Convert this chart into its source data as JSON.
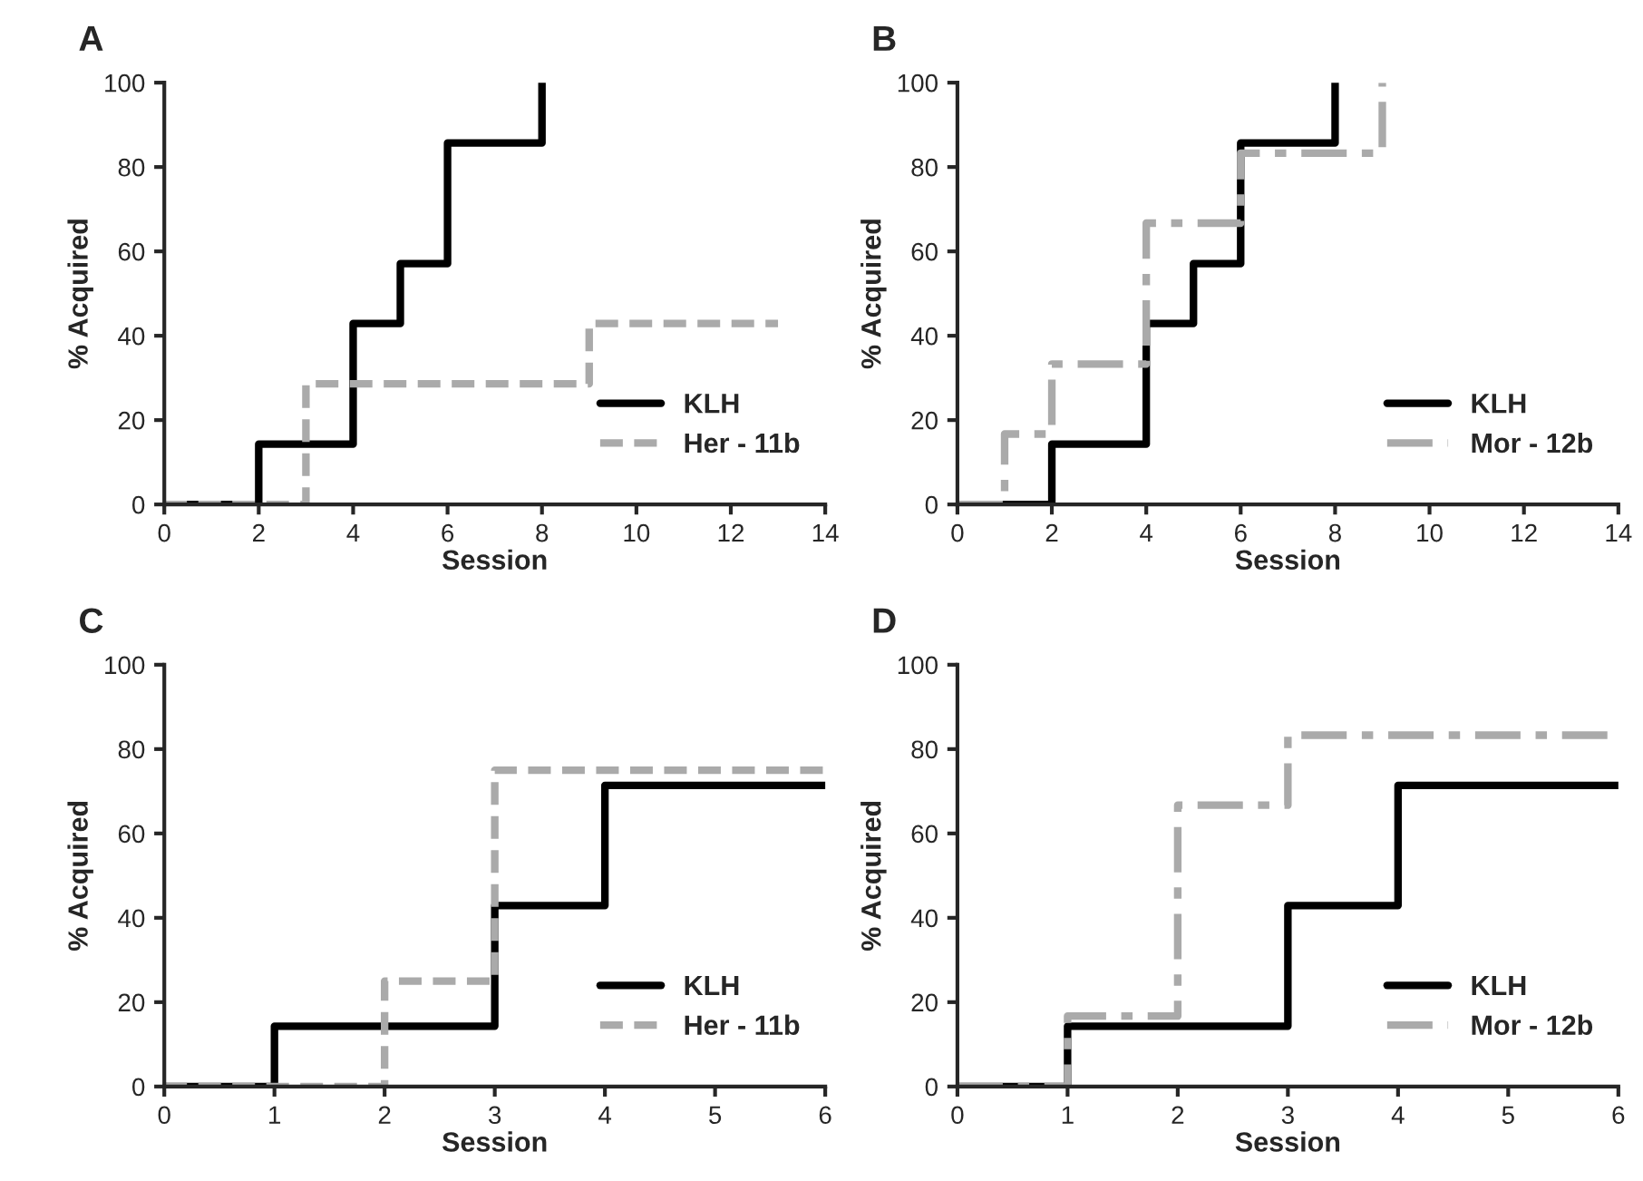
{
  "chart_data": [
    {
      "type": "step",
      "title": "A",
      "xlabel": "Session",
      "ylabel": "% Acquired",
      "xlim": [
        0,
        14
      ],
      "xticks": [
        0,
        2,
        4,
        6,
        8,
        10,
        12,
        14
      ],
      "ylim": [
        0,
        100
      ],
      "yticks": [
        0,
        20,
        40,
        60,
        80,
        100
      ],
      "grid": false,
      "legend": "bottom right",
      "series": [
        {
          "name": "KLH",
          "color": "#000000",
          "line_style": "solid",
          "x": [
            0,
            2,
            4,
            5,
            6,
            8
          ],
          "values": [
            0,
            14.3,
            42.9,
            57.1,
            85.7,
            100
          ]
        },
        {
          "name": "Her - 11b",
          "color": "#aaaaaa",
          "line_style": "dashed",
          "x": [
            0,
            3,
            9,
            13
          ],
          "values": [
            0,
            28.6,
            42.9,
            42.9
          ]
        }
      ]
    },
    {
      "type": "step",
      "title": "B",
      "xlabel": "Session",
      "ylabel": "% Acquired",
      "xlim": [
        0,
        14
      ],
      "xticks": [
        0,
        2,
        4,
        6,
        8,
        10,
        12,
        14
      ],
      "ylim": [
        0,
        100
      ],
      "yticks": [
        0,
        20,
        40,
        60,
        80,
        100
      ],
      "grid": false,
      "legend": "bottom right",
      "series": [
        {
          "name": "KLH",
          "color": "#000000",
          "line_style": "solid",
          "x": [
            0,
            2,
            4,
            5,
            6,
            8
          ],
          "values": [
            0,
            14.3,
            42.9,
            57.1,
            85.7,
            100
          ]
        },
        {
          "name": "Mor - 12b",
          "color": "#aaaaaa",
          "line_style": "dashdot",
          "x": [
            0,
            1,
            2,
            4,
            6,
            9
          ],
          "values": [
            0,
            16.7,
            33.3,
            66.7,
            83.3,
            100
          ]
        }
      ]
    },
    {
      "type": "step",
      "title": "C",
      "xlabel": "Session",
      "ylabel": "% Acquired",
      "xlim": [
        0,
        6
      ],
      "xticks": [
        0,
        1,
        2,
        3,
        4,
        5,
        6
      ],
      "ylim": [
        0,
        100
      ],
      "yticks": [
        0,
        20,
        40,
        60,
        80,
        100
      ],
      "grid": false,
      "legend": "bottom right",
      "series": [
        {
          "name": "KLH",
          "color": "#000000",
          "line_style": "solid",
          "x": [
            0,
            1,
            3,
            4,
            6
          ],
          "values": [
            0,
            14.3,
            42.9,
            71.4,
            71.4
          ]
        },
        {
          "name": "Her - 11b",
          "color": "#aaaaaa",
          "line_style": "dashed",
          "x": [
            0,
            2,
            3,
            6
          ],
          "values": [
            0,
            25,
            75,
            75
          ]
        }
      ]
    },
    {
      "type": "step",
      "title": "D",
      "xlabel": "Session",
      "ylabel": "% Acquired",
      "xlim": [
        0,
        6
      ],
      "xticks": [
        0,
        1,
        2,
        3,
        4,
        5,
        6
      ],
      "ylim": [
        0,
        100
      ],
      "yticks": [
        0,
        20,
        40,
        60,
        80,
        100
      ],
      "grid": false,
      "legend": "bottom right",
      "series": [
        {
          "name": "KLH",
          "color": "#000000",
          "line_style": "solid",
          "x": [
            0,
            1,
            3,
            4,
            6
          ],
          "values": [
            0,
            14.3,
            42.9,
            71.4,
            71.4
          ]
        },
        {
          "name": "Mor - 12b",
          "color": "#aaaaaa",
          "line_style": "dashdot",
          "x": [
            0,
            1,
            2,
            3,
            6
          ],
          "values": [
            0,
            16.7,
            66.7,
            83.3,
            83.3
          ]
        }
      ]
    }
  ]
}
